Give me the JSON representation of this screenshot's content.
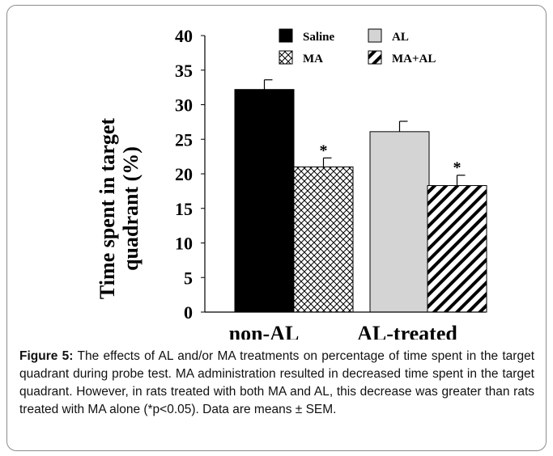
{
  "chart_data": {
    "type": "bar",
    "categories": [
      "non-AL",
      "AL-treated"
    ],
    "ylabel_line1": "Time spent in target",
    "ylabel_line2": "quadrant (%)",
    "ylim": [
      0,
      40
    ],
    "yticks": [
      0,
      5,
      10,
      15,
      20,
      25,
      30,
      35,
      40
    ],
    "series": [
      {
        "name": "Saline",
        "category": "non-AL",
        "value": 32.2,
        "error": 1.4,
        "fill": "#000000",
        "pattern": "solid",
        "sig": ""
      },
      {
        "name": "MA",
        "category": "non-AL",
        "value": 21.0,
        "error": 1.3,
        "fill": "#ffffff",
        "pattern": "crosshatch",
        "sig": "*"
      },
      {
        "name": "AL",
        "category": "AL-treated",
        "value": 26.1,
        "error": 1.5,
        "fill": "#d4d4d4",
        "pattern": "solid",
        "sig": ""
      },
      {
        "name": "MA+AL",
        "category": "AL-treated",
        "value": 18.3,
        "error": 1.5,
        "fill": "#ffffff",
        "pattern": "diagonal",
        "sig": "*"
      }
    ],
    "legend_placement": "top"
  },
  "caption": {
    "label": "Figure 5:",
    "text": " The effects of AL and/or MA treatments on percentage of time spent in the target quadrant during probe test. MA administration resulted in decreased time spent in the target quadrant. However, in rats treated with both MA and AL, this decrease was greater than rats treated with MA alone (*p<0.05). Data are means ± SEM."
  }
}
